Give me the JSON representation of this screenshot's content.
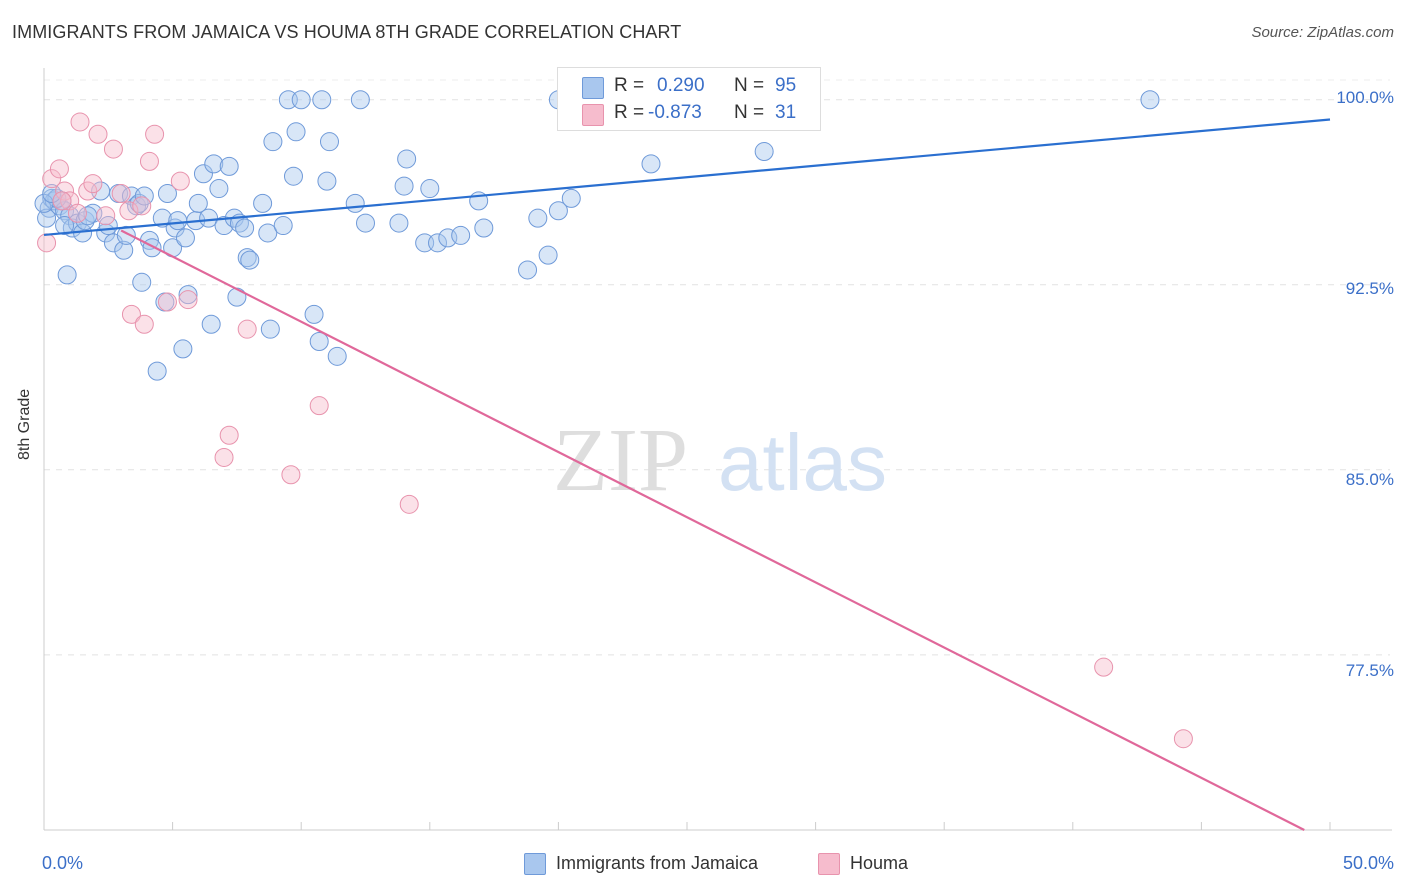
{
  "header": {
    "title": "IMMIGRANTS FROM JAMAICA VS HOUMA 8TH GRADE CORRELATION CHART",
    "source": "Source: ZipAtlas.com"
  },
  "legend": {
    "r_label": "R =",
    "n_label": "N =",
    "series": [
      {
        "name": "Immigrants from Jamaica",
        "r": "0.290",
        "n": "95"
      },
      {
        "name": "Houma",
        "r": "-0.873",
        "n": "31"
      }
    ]
  },
  "watermark": {
    "zip": "ZIP",
    "atlas": "atlas"
  },
  "colors": {
    "blue_fill": "#a9c7ee",
    "blue_stroke": "#6f9ad9",
    "blue_line": "#2a6fd0",
    "pink_fill": "#f6bccd",
    "pink_stroke": "#e893ad",
    "pink_line": "#e0689a",
    "axis_label": "#3b6fc8"
  },
  "chart_data": {
    "type": "scatter",
    "title": "IMMIGRANTS FROM JAMAICA VS HOUMA 8TH GRADE CORRELATION CHART",
    "xlabel": "",
    "ylabel": "8th Grade",
    "xlim": [
      0,
      50
    ],
    "ylim": [
      70.4,
      100.8
    ],
    "x_tick_labels": [
      "0.0%",
      "50.0%"
    ],
    "y_ticks": [
      100.0,
      92.5,
      85.0,
      77.5
    ],
    "y_tick_labels": [
      "100.0%",
      "92.5%",
      "85.0%",
      "77.5%"
    ],
    "grid": true,
    "legend_position": "top-center",
    "series": [
      {
        "name": "Immigrants from Jamaica",
        "r": 0.29,
        "n": 95,
        "trend": {
          "x0": 0,
          "y0": 94.52,
          "x1": 50,
          "y1": 99.2
        },
        "points": [
          [
            0.2,
            95.6
          ],
          [
            0.3,
            96.0
          ],
          [
            0.4,
            95.9
          ],
          [
            0.6,
            95.7
          ],
          [
            0.7,
            95.9
          ],
          [
            0.8,
            95.5
          ],
          [
            1.0,
            95.3
          ],
          [
            1.1,
            94.8
          ],
          [
            1.3,
            95.0
          ],
          [
            1.5,
            94.6
          ],
          [
            1.6,
            95.1
          ],
          [
            1.9,
            95.4
          ],
          [
            2.2,
            96.3
          ],
          [
            2.4,
            94.6
          ],
          [
            2.5,
            94.9
          ],
          [
            2.7,
            94.2
          ],
          [
            2.9,
            96.2
          ],
          [
            3.1,
            93.9
          ],
          [
            3.2,
            94.5
          ],
          [
            3.4,
            96.1
          ],
          [
            3.6,
            95.7
          ],
          [
            3.7,
            95.8
          ],
          [
            3.8,
            92.6
          ],
          [
            3.9,
            96.1
          ],
          [
            4.1,
            94.3
          ],
          [
            4.2,
            94.0
          ],
          [
            4.4,
            89.0
          ],
          [
            4.6,
            95.2
          ],
          [
            4.7,
            91.8
          ],
          [
            4.8,
            96.2
          ],
          [
            5.0,
            94.0
          ],
          [
            5.1,
            94.8
          ],
          [
            5.2,
            95.1
          ],
          [
            5.4,
            89.9
          ],
          [
            5.5,
            94.4
          ],
          [
            5.6,
            92.1
          ],
          [
            5.9,
            95.1
          ],
          [
            6.0,
            95.8
          ],
          [
            6.2,
            97.0
          ],
          [
            6.4,
            95.2
          ],
          [
            6.5,
            90.9
          ],
          [
            6.6,
            97.4
          ],
          [
            6.8,
            96.4
          ],
          [
            7.0,
            94.9
          ],
          [
            7.2,
            97.3
          ],
          [
            7.4,
            95.2
          ],
          [
            7.5,
            92.0
          ],
          [
            7.6,
            95.0
          ],
          [
            7.8,
            94.8
          ],
          [
            7.9,
            93.6
          ],
          [
            8.0,
            93.5
          ],
          [
            8.5,
            95.8
          ],
          [
            8.7,
            94.6
          ],
          [
            8.8,
            90.7
          ],
          [
            8.9,
            98.3
          ],
          [
            9.3,
            94.9
          ],
          [
            9.5,
            100.0
          ],
          [
            9.7,
            96.9
          ],
          [
            9.8,
            98.7
          ],
          [
            10.0,
            100.0
          ],
          [
            10.5,
            91.3
          ],
          [
            10.7,
            90.2
          ],
          [
            10.8,
            100.0
          ],
          [
            11.0,
            96.7
          ],
          [
            11.1,
            98.3
          ],
          [
            11.4,
            89.6
          ],
          [
            12.1,
            95.8
          ],
          [
            12.3,
            100.0
          ],
          [
            12.5,
            95.0
          ],
          [
            13.8,
            95.0
          ],
          [
            14.0,
            96.5
          ],
          [
            14.1,
            97.6
          ],
          [
            14.8,
            94.2
          ],
          [
            15.0,
            96.4
          ],
          [
            15.3,
            94.2
          ],
          [
            15.7,
            94.4
          ],
          [
            16.2,
            94.5
          ],
          [
            16.9,
            95.9
          ],
          [
            17.1,
            94.8
          ],
          [
            18.8,
            93.1
          ],
          [
            19.2,
            95.2
          ],
          [
            19.6,
            93.7
          ],
          [
            20.0,
            95.5
          ],
          [
            20.5,
            96.0
          ],
          [
            0.9,
            92.9
          ],
          [
            0.1,
            95.2
          ],
          [
            23.6,
            97.4
          ],
          [
            0.5,
            96.0
          ],
          [
            28.0,
            97.9
          ],
          [
            0.0,
            95.8
          ],
          [
            1.7,
            95.3
          ],
          [
            43.0,
            100.0
          ],
          [
            0.3,
            96.2
          ],
          [
            20.0,
            100.0
          ],
          [
            0.8,
            94.9
          ]
        ]
      },
      {
        "name": "Houma",
        "r": -0.873,
        "n": 31,
        "trend": {
          "x0": 3.0,
          "y0": 94.7,
          "x1": 49.0,
          "y1": 70.4
        },
        "points": [
          [
            0.1,
            94.2
          ],
          [
            0.3,
            96.8
          ],
          [
            0.6,
            97.2
          ],
          [
            0.8,
            96.3
          ],
          [
            1.0,
            95.9
          ],
          [
            1.3,
            95.4
          ],
          [
            1.4,
            99.1
          ],
          [
            1.7,
            96.3
          ],
          [
            1.9,
            96.6
          ],
          [
            2.1,
            98.6
          ],
          [
            2.4,
            95.3
          ],
          [
            2.7,
            98.0
          ],
          [
            3.0,
            96.2
          ],
          [
            3.3,
            95.5
          ],
          [
            3.4,
            91.3
          ],
          [
            3.8,
            95.7
          ],
          [
            3.9,
            90.9
          ],
          [
            4.1,
            97.5
          ],
          [
            4.3,
            98.6
          ],
          [
            4.8,
            91.8
          ],
          [
            5.3,
            96.7
          ],
          [
            5.6,
            91.9
          ],
          [
            7.0,
            85.5
          ],
          [
            7.2,
            86.4
          ],
          [
            7.9,
            90.7
          ],
          [
            9.6,
            84.8
          ],
          [
            10.7,
            87.6
          ],
          [
            14.2,
            83.6
          ],
          [
            41.2,
            77.0
          ],
          [
            44.3,
            74.1
          ],
          [
            0.7,
            95.9
          ]
        ]
      }
    ]
  }
}
